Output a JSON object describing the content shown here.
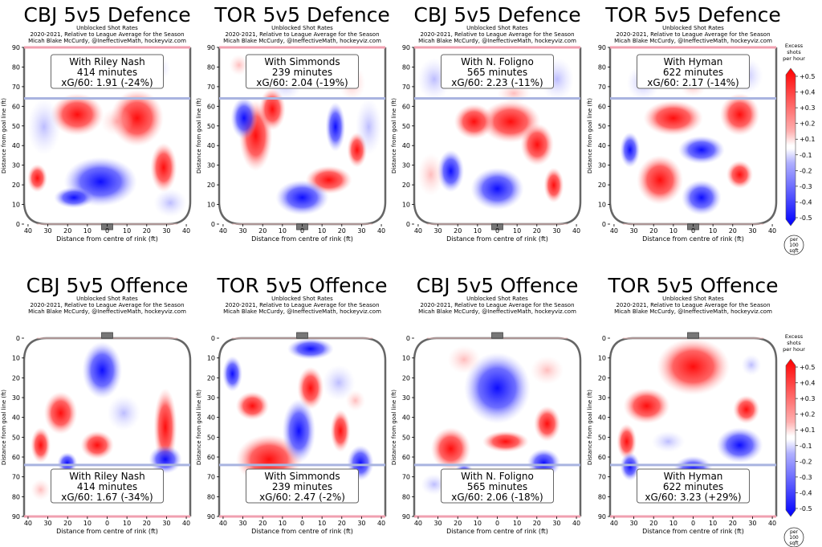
{
  "subtitle_lines": [
    "Unblocked Shot Rates",
    "2020-2021, Relative to League Average for the Season",
    "Micah Blake McCurdy, @IneffectiveMath, hockeyviz.com"
  ],
  "xlabel": "Distance from centre of rink (ft)",
  "ylabel": "Distance from goal line (ft)",
  "colors": {
    "red": "#ff0000",
    "blue": "#0000ff",
    "rink": "#666666",
    "blueline": "#a9b4e0",
    "redline": "#f0a0b0",
    "net": "#777777"
  },
  "legend": {
    "title_lines": [
      "Excess",
      "shots",
      "per hour"
    ],
    "labels": [
      "+0.5",
      "+0.4",
      "+0.3",
      "+0.2",
      "+0.1",
      "-0.1",
      "-0.2",
      "-0.3",
      "-0.4",
      "-0.5"
    ],
    "unit_lines": [
      "per",
      "100",
      "sqft"
    ]
  },
  "chart_data": [
    {
      "type": "heatmap",
      "title": "CBJ 5v5 Defence",
      "box_lines": [
        "With Riley Nash",
        "414 minutes",
        "xG/60: 1.91 (-24%)"
      ],
      "x_ticks": [
        40,
        30,
        20,
        10,
        0,
        10,
        20,
        30,
        40
      ],
      "y_ticks": [
        90,
        80,
        70,
        60,
        50,
        40,
        30,
        20,
        10,
        0
      ],
      "y_direction": "up",
      "xlim": [
        -42,
        42
      ],
      "ylim": [
        0,
        90
      ]
    },
    {
      "type": "heatmap",
      "title": "TOR 5v5 Defence",
      "box_lines": [
        "With Simmonds",
        "239 minutes",
        "xG/60: 2.04 (-19%)"
      ],
      "x_ticks": [
        40,
        30,
        20,
        10,
        0,
        10,
        20,
        30,
        40
      ],
      "y_ticks": [
        90,
        80,
        70,
        60,
        50,
        40,
        30,
        20,
        10,
        0
      ],
      "y_direction": "up",
      "xlim": [
        -42,
        42
      ],
      "ylim": [
        0,
        90
      ]
    },
    {
      "type": "heatmap",
      "title": "CBJ 5v5 Defence",
      "box_lines": [
        "With N. Foligno",
        "565 minutes",
        "xG/60: 2.23 (-11%)"
      ],
      "x_ticks": [
        40,
        30,
        20,
        10,
        0,
        10,
        20,
        30,
        40
      ],
      "y_ticks": [
        90,
        80,
        70,
        60,
        50,
        40,
        30,
        20,
        10,
        0
      ],
      "y_direction": "up",
      "xlim": [
        -42,
        42
      ],
      "ylim": [
        0,
        90
      ]
    },
    {
      "type": "heatmap",
      "title": "TOR 5v5 Defence",
      "box_lines": [
        "With Hyman",
        "622 minutes",
        "xG/60: 2.17 (-14%)"
      ],
      "x_ticks": [
        40,
        30,
        20,
        10,
        0,
        10,
        20,
        30,
        40
      ],
      "y_ticks": [
        90,
        80,
        70,
        60,
        50,
        40,
        30,
        20,
        10,
        0
      ],
      "y_direction": "up",
      "xlim": [
        -42,
        42
      ],
      "ylim": [
        0,
        90
      ]
    },
    {
      "type": "heatmap",
      "title": "CBJ 5v5 Offence",
      "box_lines": [
        "With Riley Nash",
        "414 minutes",
        "xG/60: 1.67 (-34%)"
      ],
      "x_ticks": [
        40,
        30,
        20,
        10,
        0,
        10,
        20,
        30,
        40
      ],
      "y_ticks": [
        0,
        10,
        20,
        30,
        40,
        50,
        60,
        70,
        80,
        90
      ],
      "y_direction": "down",
      "xlim": [
        -42,
        42
      ],
      "ylim": [
        0,
        90
      ]
    },
    {
      "type": "heatmap",
      "title": "TOR 5v5 Offence",
      "box_lines": [
        "With Simmonds",
        "239 minutes",
        "xG/60: 2.47 (-2%)"
      ],
      "x_ticks": [
        40,
        30,
        20,
        10,
        0,
        10,
        20,
        30,
        40
      ],
      "y_ticks": [
        0,
        10,
        20,
        30,
        40,
        50,
        60,
        70,
        80,
        90
      ],
      "y_direction": "down",
      "xlim": [
        -42,
        42
      ],
      "ylim": [
        0,
        90
      ]
    },
    {
      "type": "heatmap",
      "title": "CBJ 5v5 Offence",
      "box_lines": [
        "With N. Foligno",
        "565 minutes",
        "xG/60: 2.06 (-18%)"
      ],
      "x_ticks": [
        40,
        30,
        20,
        10,
        0,
        10,
        20,
        30,
        40
      ],
      "y_ticks": [
        0,
        10,
        20,
        30,
        40,
        50,
        60,
        70,
        80,
        90
      ],
      "y_direction": "down",
      "xlim": [
        -42,
        42
      ],
      "ylim": [
        0,
        90
      ]
    },
    {
      "type": "heatmap",
      "title": "TOR 5v5 Offence",
      "box_lines": [
        "With Hyman",
        "622 minutes",
        "xG/60: 3.23 (+29%)"
      ],
      "x_ticks": [
        40,
        30,
        20,
        10,
        0,
        10,
        20,
        30,
        40
      ],
      "y_ticks": [
        0,
        10,
        20,
        30,
        40,
        50,
        60,
        70,
        80,
        90
      ],
      "y_direction": "down",
      "xlim": [
        -42,
        42
      ],
      "ylim": [
        0,
        90
      ]
    }
  ]
}
